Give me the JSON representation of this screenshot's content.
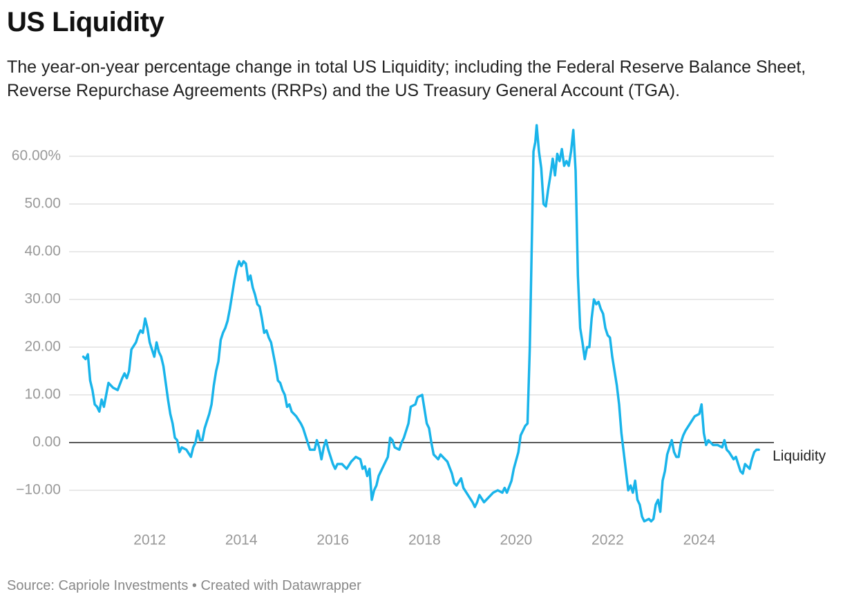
{
  "chart_data": {
    "type": "line",
    "title": "US Liquidity",
    "subtitle": "The year-on-year percentage change in total US Liquidity; including the Federal Reserve Balance Sheet, Reverse Repurchase Agreements (RRPs) and the US Treasury General Account (TGA).",
    "source": "Source: Capriole Investments • Created with Datawrapper",
    "xlim": [
      2010.24,
      2025.63
    ],
    "xticks": [
      2012,
      2014,
      2016,
      2018,
      2020,
      2022,
      2024
    ],
    "ylim": [
      -17,
      68
    ],
    "yticks": [
      {
        "value": -10,
        "label": "−10.00"
      },
      {
        "value": 0,
        "label": "0.00"
      },
      {
        "value": 10,
        "label": "10.00"
      },
      {
        "value": 20,
        "label": "20.00"
      },
      {
        "value": 30,
        "label": "30.00"
      },
      {
        "value": 40,
        "label": "40.00"
      },
      {
        "value": 50,
        "label": "50.00"
      },
      {
        "value": 60,
        "label": "60.00%"
      }
    ],
    "grid": true,
    "x": [
      2010.55,
      2010.6,
      2010.65,
      2010.7,
      2010.75,
      2010.8,
      2010.85,
      2010.9,
      2010.95,
      2011.0,
      2011.05,
      2011.1,
      2011.2,
      2011.3,
      2011.4,
      2011.45,
      2011.5,
      2011.55,
      2011.6,
      2011.7,
      2011.75,
      2011.8,
      2011.85,
      2011.9,
      2011.95,
      2012.0,
      2012.05,
      2012.1,
      2012.15,
      2012.2,
      2012.25,
      2012.3,
      2012.35,
      2012.4,
      2012.45,
      2012.5,
      2012.55,
      2012.6,
      2012.65,
      2012.7,
      2012.8,
      2012.9,
      2012.95,
      2013.0,
      2013.05,
      2013.1,
      2013.15,
      2013.2,
      2013.25,
      2013.3,
      2013.35,
      2013.4,
      2013.45,
      2013.5,
      2013.55,
      2013.6,
      2013.65,
      2013.7,
      2013.75,
      2013.8,
      2013.85,
      2013.9,
      2013.95,
      2014.0,
      2014.05,
      2014.1,
      2014.15,
      2014.2,
      2014.25,
      2014.3,
      2014.35,
      2014.4,
      2014.45,
      2014.5,
      2014.55,
      2014.6,
      2014.65,
      2014.7,
      2014.75,
      2014.8,
      2014.85,
      2014.9,
      2014.95,
      2015.0,
      2015.05,
      2015.1,
      2015.2,
      2015.3,
      2015.35,
      2015.4,
      2015.45,
      2015.5,
      2015.6,
      2015.65,
      2015.7,
      2015.75,
      2015.8,
      2015.85,
      2015.9,
      2015.95,
      2016.0,
      2016.05,
      2016.1,
      2016.2,
      2016.3,
      2016.4,
      2016.5,
      2016.6,
      2016.65,
      2016.7,
      2016.75,
      2016.8,
      2016.85,
      2016.9,
      2016.95,
      2017.0,
      2017.1,
      2017.2,
      2017.25,
      2017.3,
      2017.35,
      2017.45,
      2017.5,
      2017.55,
      2017.6,
      2017.65,
      2017.7,
      2017.8,
      2017.85,
      2017.95,
      2018.0,
      2018.05,
      2018.1,
      2018.15,
      2018.2,
      2018.3,
      2018.35,
      2018.45,
      2018.5,
      2018.6,
      2018.65,
      2018.7,
      2018.8,
      2018.85,
      2018.95,
      2019.05,
      2019.1,
      2019.15,
      2019.2,
      2019.3,
      2019.4,
      2019.5,
      2019.6,
      2019.7,
      2019.75,
      2019.8,
      2019.9,
      2019.95,
      2020.05,
      2020.1,
      2020.15,
      2020.2,
      2020.25,
      2020.3,
      2020.35,
      2020.38,
      2020.42,
      2020.45,
      2020.5,
      2020.55,
      2020.6,
      2020.65,
      2020.7,
      2020.75,
      2020.8,
      2020.85,
      2020.9,
      2020.95,
      2021.0,
      2021.05,
      2021.1,
      2021.15,
      2021.2,
      2021.25,
      2021.3,
      2021.35,
      2021.4,
      2021.45,
      2021.5,
      2021.55,
      2021.6,
      2021.65,
      2021.7,
      2021.75,
      2021.8,
      2021.85,
      2021.9,
      2021.95,
      2022.0,
      2022.05,
      2022.1,
      2022.15,
      2022.2,
      2022.25,
      2022.3,
      2022.35,
      2022.4,
      2022.45,
      2022.5,
      2022.55,
      2022.6,
      2022.65,
      2022.7,
      2022.75,
      2022.8,
      2022.9,
      2022.95,
      2023.0,
      2023.05,
      2023.1,
      2023.15,
      2023.2,
      2023.25,
      2023.3,
      2023.35,
      2023.4,
      2023.45,
      2023.5,
      2023.55,
      2023.6,
      2023.65,
      2023.7,
      2023.8,
      2023.9,
      2024.0,
      2024.05,
      2024.1,
      2024.15,
      2024.2,
      2024.3,
      2024.4,
      2024.5,
      2024.55,
      2024.6,
      2024.65,
      2024.75,
      2024.8,
      2024.85,
      2024.9,
      2024.95,
      2025.0,
      2025.05,
      2025.1,
      2025.15,
      2025.2,
      2025.25,
      2025.3
    ],
    "series": [
      {
        "name": "Liquidity",
        "color": "#19b4ea",
        "values": [
          18,
          17.5,
          18.5,
          13,
          11,
          8,
          7.5,
          6.5,
          9,
          7.5,
          10,
          12.5,
          11.5,
          11,
          13.5,
          14.5,
          13.5,
          15,
          19.5,
          21,
          22.5,
          23.5,
          23,
          26,
          24,
          21,
          19.5,
          18,
          21,
          19,
          18,
          16,
          12.5,
          9,
          6,
          4,
          1,
          0.5,
          -2,
          -1,
          -1.5,
          -3,
          -1,
          0,
          2.5,
          0.5,
          0.5,
          3,
          4.5,
          6,
          8,
          12,
          15,
          17,
          21.5,
          23,
          24,
          25.5,
          28,
          31,
          34,
          36.5,
          38,
          37,
          38,
          37.5,
          34,
          35,
          32.5,
          31,
          29,
          28.5,
          26,
          23,
          23.5,
          22,
          21,
          18.5,
          16,
          13,
          12.5,
          11,
          10,
          7.5,
          8,
          6.5,
          5.5,
          4,
          3,
          1.5,
          0,
          -1.5,
          -1.5,
          0.5,
          -1,
          -3.5,
          -1,
          0.5,
          -1.5,
          -3,
          -4.5,
          -5.5,
          -4.5,
          -4.5,
          -5.5,
          -4,
          -3,
          -3.5,
          -5.5,
          -5,
          -7,
          -5.5,
          -12,
          -10,
          -9,
          -7,
          -5,
          -3,
          1,
          0.5,
          -1,
          -1.5,
          0,
          1,
          2.5,
          4,
          7.5,
          8,
          9.5,
          10,
          7,
          4,
          3,
          0,
          -2.5,
          -3.5,
          -2.5,
          -3.5,
          -4,
          -6.5,
          -8.5,
          -9,
          -7.5,
          -9.5,
          -11,
          -12.5,
          -13.5,
          -12.5,
          -11,
          -12.5,
          -11.5,
          -10.5,
          -10,
          -10.5,
          -9.5,
          -10.5,
          -8,
          -5.5,
          -2,
          1.5,
          2.5,
          3.5,
          4,
          20,
          45,
          61,
          63,
          66.5,
          61,
          57.5,
          50,
          49.5,
          53,
          56,
          59.5,
          56,
          60.5,
          59,
          61.5,
          58,
          59,
          58,
          61,
          65.5,
          57,
          35,
          24,
          21,
          17.5,
          20,
          20,
          26,
          30,
          29,
          29.5,
          28,
          27,
          24,
          22.5,
          22,
          18,
          15,
          12,
          8,
          2,
          -2,
          -6,
          -10,
          -9,
          -10.5,
          -8,
          -12,
          -13,
          -15.5,
          -16.5,
          -16,
          -16.5,
          -16,
          -13,
          -12,
          -14.5,
          -8,
          -6,
          -2.5,
          -1,
          0.5,
          -2,
          -3,
          -3,
          0,
          1.5,
          2.5,
          4,
          5.5,
          6,
          8,
          2,
          -0.5,
          0.5,
          -0.5,
          -0.5,
          -1,
          0.5,
          -1.5,
          -2,
          -3.5,
          -3,
          -4.5,
          -6,
          -6.5,
          -4.5,
          -5,
          -5.5,
          -3.5,
          -2,
          -1.5,
          -1.5
        ]
      }
    ]
  }
}
